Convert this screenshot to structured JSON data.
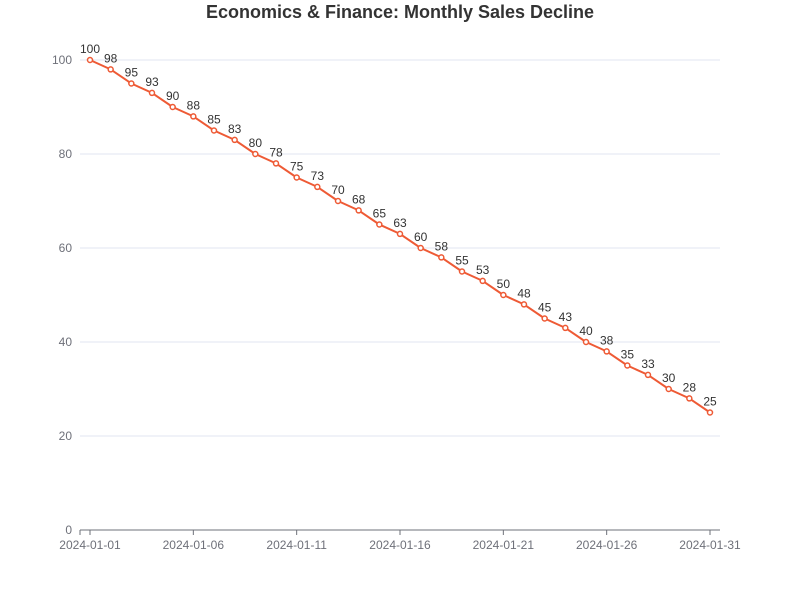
{
  "chart_data": {
    "type": "line",
    "title": "Economics & Finance: Monthly Sales Decline",
    "xlabel": "",
    "ylabel": "",
    "x": [
      "2024-01-01",
      "2024-01-02",
      "2024-01-03",
      "2024-01-04",
      "2024-01-05",
      "2024-01-06",
      "2024-01-07",
      "2024-01-08",
      "2024-01-09",
      "2024-01-10",
      "2024-01-11",
      "2024-01-12",
      "2024-01-13",
      "2024-01-14",
      "2024-01-15",
      "2024-01-16",
      "2024-01-17",
      "2024-01-18",
      "2024-01-19",
      "2024-01-20",
      "2024-01-21",
      "2024-01-22",
      "2024-01-23",
      "2024-01-24",
      "2024-01-25",
      "2024-01-26",
      "2024-01-27",
      "2024-01-28",
      "2024-01-29",
      "2024-01-30",
      "2024-01-31"
    ],
    "xticks": [
      "2024-01-01",
      "2024-01-06",
      "2024-01-11",
      "2024-01-16",
      "2024-01-21",
      "2024-01-26",
      "2024-01-31"
    ],
    "series": [
      {
        "values": [
          100,
          98,
          95,
          93,
          90,
          88,
          85,
          83,
          80,
          78,
          75,
          73,
          70,
          68,
          65,
          63,
          60,
          58,
          55,
          53,
          50,
          48,
          45,
          43,
          40,
          38,
          35,
          33,
          30,
          28,
          25
        ]
      }
    ],
    "ylim": [
      0,
      100
    ],
    "yticks": [
      0,
      20,
      40,
      60,
      80,
      100
    ],
    "grid": true,
    "legend": "none",
    "colors": {
      "line": "#ee5a35",
      "grid": "#e0e6f1",
      "axis": "#6e7079",
      "marker_fill": "#ffffff"
    }
  }
}
